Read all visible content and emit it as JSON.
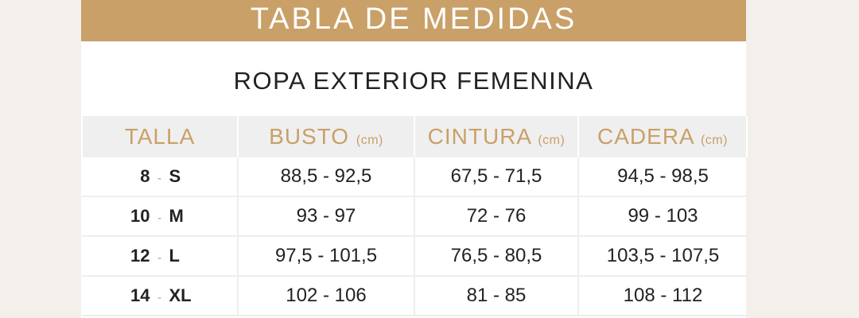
{
  "banner": {
    "title": "TABLA DE MEDIDAS"
  },
  "subtitle": "ROPA EXTERIOR FEMENINA",
  "table": {
    "headers": [
      {
        "label": "TALLA",
        "unit": ""
      },
      {
        "label": "BUSTO",
        "unit": "(cm)"
      },
      {
        "label": "CINTURA",
        "unit": "(cm)"
      },
      {
        "label": "CADERA",
        "unit": "(cm)"
      }
    ],
    "rows": [
      {
        "num": "8",
        "sep": "-",
        "letter": "S",
        "busto": "88,5 - 92,5",
        "cintura": "67,5 -  71,5",
        "cadera": "94,5 - 98,5"
      },
      {
        "num": "10",
        "sep": "-",
        "letter": "M",
        "busto": "93 - 97",
        "cintura": "72 - 76",
        "cadera": "99 - 103"
      },
      {
        "num": "12",
        "sep": "-",
        "letter": "L",
        "busto": "97,5 - 101,5",
        "cintura": "76,5 - 80,5",
        "cadera": "103,5 - 107,5"
      },
      {
        "num": "14",
        "sep": "-",
        "letter": "XL",
        "busto": "102 - 106",
        "cintura": "81 - 85",
        "cadera": "108 - 112"
      }
    ]
  },
  "colors": {
    "accent": "#c9a068",
    "header_bg": "#efefef",
    "page_bg": "#f3efea"
  }
}
